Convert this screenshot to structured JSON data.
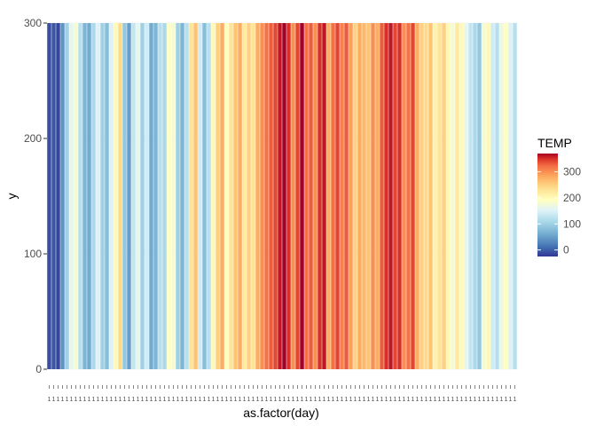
{
  "chart_data": {
    "type": "heatmap",
    "xlabel": "as.factor(day)",
    "ylabel": "y",
    "ylim": [
      0,
      300
    ],
    "yticks": [
      0,
      100,
      200,
      300
    ],
    "category_count": 106,
    "category_tick_label": "1",
    "temp_values": [
      -10,
      -5,
      -15,
      40,
      100,
      160,
      180,
      120,
      70,
      60,
      110,
      150,
      100,
      80,
      150,
      200,
      240,
      90,
      50,
      130,
      160,
      100,
      140,
      60,
      70,
      120,
      110,
      190,
      180,
      100,
      70,
      120,
      230,
      260,
      140,
      80,
      120,
      200,
      250,
      280,
      190,
      230,
      260,
      280,
      220,
      250,
      230,
      280,
      300,
      320,
      330,
      340,
      360,
      370,
      350,
      300,
      340,
      370,
      320,
      330,
      300,
      350,
      360,
      280,
      320,
      340,
      310,
      330,
      290,
      250,
      280,
      270,
      260,
      300,
      280,
      330,
      350,
      360,
      340,
      350,
      300,
      320,
      340,
      280,
      250,
      240,
      260,
      210,
      230,
      250,
      200,
      180,
      220,
      200,
      160,
      130,
      110,
      90,
      180,
      200,
      140,
      120,
      170,
      190,
      150,
      120
    ],
    "legend": {
      "title": "TEMP",
      "ticks": [
        0,
        100,
        200,
        300
      ],
      "range": [
        -25,
        370
      ]
    }
  }
}
